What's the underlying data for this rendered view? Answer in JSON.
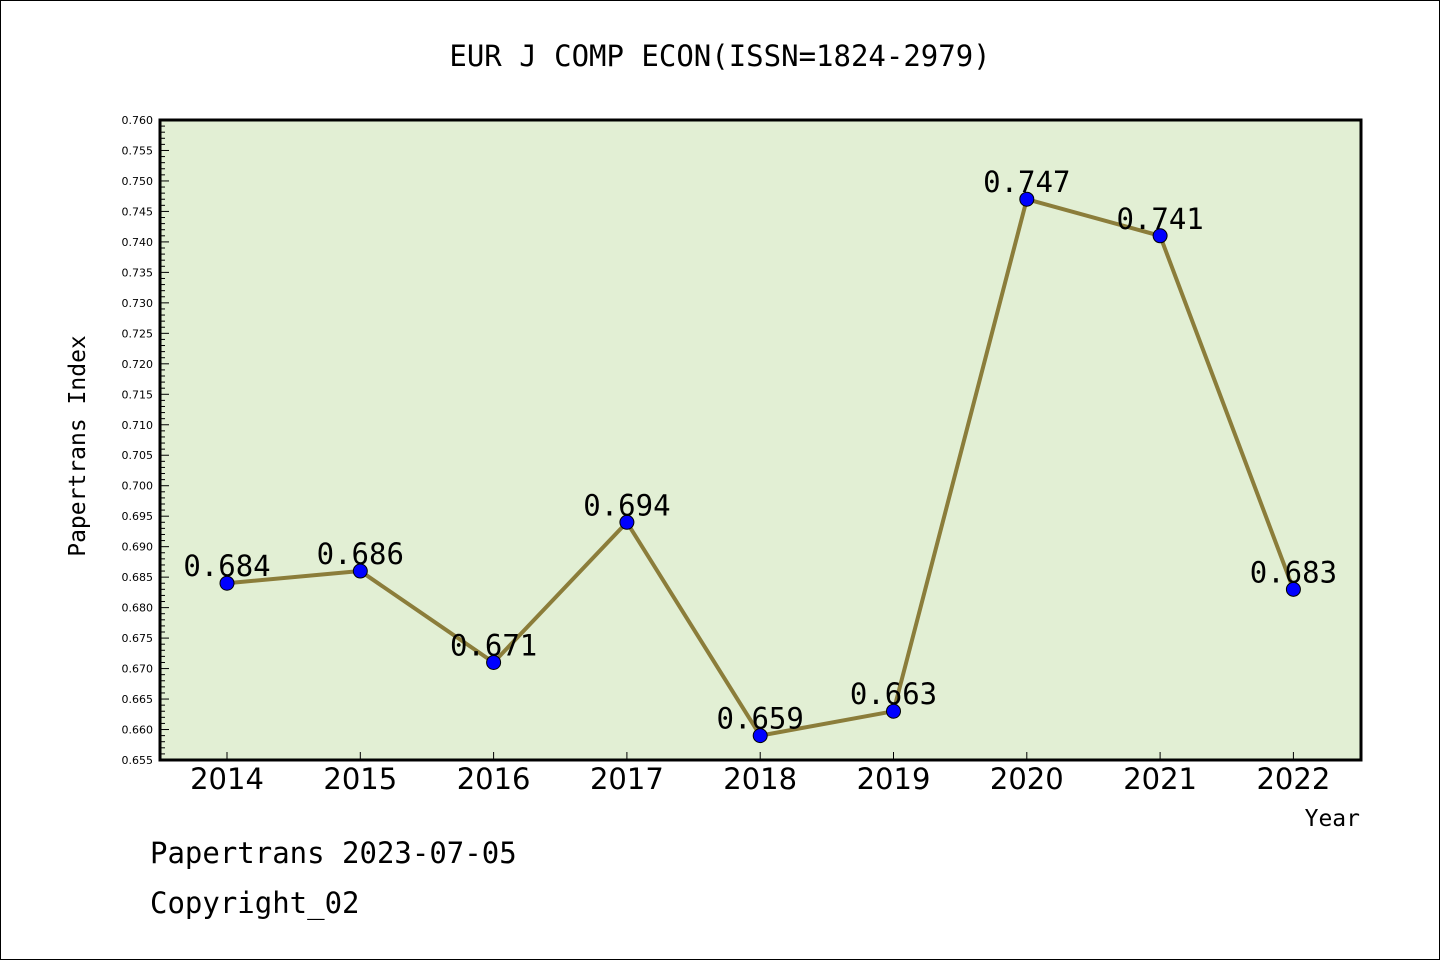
{
  "chart_data": {
    "type": "line",
    "title": "EUR J COMP ECON(ISSN=1824-2979)",
    "xlabel": "Year",
    "ylabel": "Papertrans Index",
    "categories": [
      "2014",
      "2015",
      "2016",
      "2017",
      "2018",
      "2019",
      "2020",
      "2021",
      "2022"
    ],
    "series": [
      {
        "values": [
          0.684,
          0.686,
          0.671,
          0.694,
          0.659,
          0.663,
          0.747,
          0.741,
          0.683
        ],
        "labels": [
          "0.684",
          "0.686",
          "0.671",
          "0.694",
          "0.659",
          "0.663",
          "0.747",
          "0.741",
          "0.683"
        ]
      }
    ],
    "ylim": [
      0.655,
      0.76
    ],
    "yticks": [
      "0.655",
      "0.660",
      "0.665",
      "0.670",
      "0.675",
      "0.680",
      "0.685",
      "0.690",
      "0.695",
      "0.700",
      "0.705",
      "0.710",
      "0.715",
      "0.720",
      "0.725",
      "0.730",
      "0.735",
      "0.740",
      "0.745",
      "0.750",
      "0.755",
      "0.760"
    ],
    "grid": false,
    "legend": "none",
    "colors": {
      "plot_background": "#e2efd4",
      "line": "#8b7d3a",
      "marker": "#0000ff"
    }
  },
  "footer": {
    "line1": "Papertrans 2023-07-05",
    "line2": "Copyright_02"
  }
}
